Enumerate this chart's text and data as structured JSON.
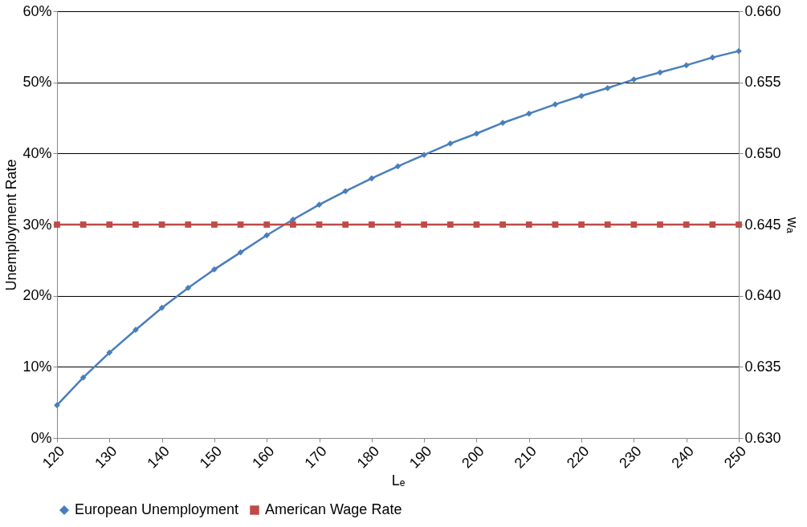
{
  "chart_data": {
    "type": "line",
    "xlabel": "Lₑ",
    "ylabel": "Unemployment Rate",
    "y2label": "wₐ",
    "x": [
      120,
      125,
      130,
      135,
      140,
      145,
      150,
      155,
      160,
      165,
      170,
      175,
      180,
      185,
      190,
      195,
      200,
      205,
      210,
      215,
      220,
      225,
      230,
      235,
      240,
      245,
      250
    ],
    "series": [
      {
        "name": "European Unemployment",
        "color": "#4a7ebb",
        "marker": "diamond",
        "values": [
          4.6,
          8.5,
          12.0,
          15.2,
          18.3,
          21.1,
          23.7,
          26.1,
          28.5,
          30.7,
          32.8,
          34.7,
          36.5,
          38.2,
          39.8,
          41.4,
          42.8,
          44.3,
          45.6,
          46.9,
          48.1,
          49.2,
          50.4,
          51.4,
          52.4,
          53.5,
          54.4
        ]
      },
      {
        "name": "American Wage Rate",
        "color": "#be4b48",
        "marker": "square",
        "axis": "y2",
        "values": [
          0.645,
          0.645,
          0.645,
          0.645,
          0.645,
          0.645,
          0.645,
          0.645,
          0.645,
          0.645,
          0.645,
          0.645,
          0.645,
          0.645,
          0.645,
          0.645,
          0.645,
          0.645,
          0.645,
          0.645,
          0.645,
          0.645,
          0.645,
          0.645,
          0.645,
          0.645,
          0.645
        ]
      }
    ],
    "xlim": [
      120,
      250
    ],
    "xticks": [
      120,
      130,
      140,
      150,
      160,
      170,
      180,
      190,
      200,
      210,
      220,
      230,
      240,
      250
    ],
    "ylim": [
      0,
      60
    ],
    "yticks": [
      {
        "value": 0,
        "label": "0%"
      },
      {
        "value": 10,
        "label": "10%"
      },
      {
        "value": 20,
        "label": "20%"
      },
      {
        "value": 30,
        "label": "30%"
      },
      {
        "value": 40,
        "label": "40%"
      },
      {
        "value": 50,
        "label": "50%"
      },
      {
        "value": 60,
        "label": "60%"
      }
    ],
    "y2lim": [
      0.63,
      0.66
    ],
    "y2ticks": [
      {
        "value": 0.63,
        "label": "0.630"
      },
      {
        "value": 0.635,
        "label": "0.635"
      },
      {
        "value": 0.64,
        "label": "0.640"
      },
      {
        "value": 0.645,
        "label": "0.645"
      },
      {
        "value": 0.65,
        "label": "0.650"
      },
      {
        "value": 0.655,
        "label": "0.655"
      },
      {
        "value": 0.66,
        "label": "0.660"
      }
    ],
    "grid": "y",
    "legend": "bottom",
    "line_style": "solid"
  }
}
